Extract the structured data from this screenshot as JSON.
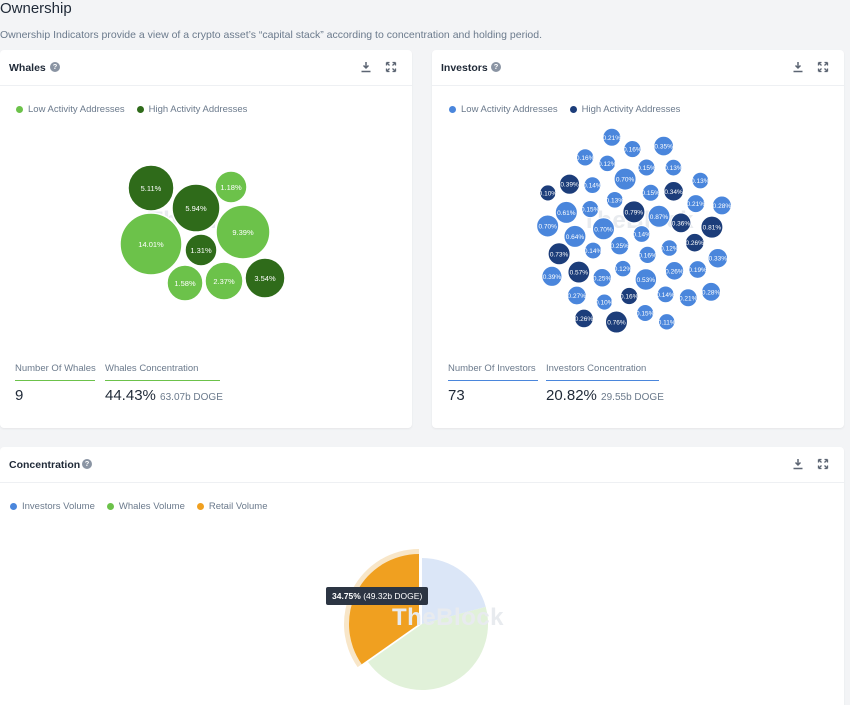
{
  "page": {
    "title": "Ownership",
    "subtitle": "Ownership Indicators provide a view of a crypto asset’s “capital stack” according to concentration and holding period."
  },
  "icons": {
    "help": "help-circle-icon",
    "download": "download-icon",
    "expand": "expand-icon"
  },
  "watermark": "TheBlock",
  "whales": {
    "title": "Whales",
    "legend": [
      {
        "label": "Low Activity Addresses",
        "color": "#6cc24a"
      },
      {
        "label": "High Activity Addresses",
        "color": "#2f6b1a"
      }
    ],
    "bubbles": [
      {
        "label": "5.11%",
        "value": 5.11,
        "activity": "high"
      },
      {
        "label": "1.18%",
        "value": 1.18,
        "activity": "low"
      },
      {
        "label": "5.94%",
        "value": 5.94,
        "activity": "high"
      },
      {
        "label": "14.01%",
        "value": 14.01,
        "activity": "low"
      },
      {
        "label": "9.39%",
        "value": 9.39,
        "activity": "low"
      },
      {
        "label": "1.31%",
        "value": 1.31,
        "activity": "high"
      },
      {
        "label": "1.58%",
        "value": 1.58,
        "activity": "low"
      },
      {
        "label": "2.37%",
        "value": 2.37,
        "activity": "low"
      },
      {
        "label": "3.54%",
        "value": 3.54,
        "activity": "high"
      }
    ],
    "stats": {
      "count_label": "Number Of Whales",
      "count_value": "9",
      "conc_label": "Whales Concentration",
      "conc_value": "44.43%",
      "conc_sub": "63.07b DOGE"
    }
  },
  "investors": {
    "title": "Investors",
    "legend": [
      {
        "label": "Low Activity Addresses",
        "color": "#4a86dc"
      },
      {
        "label": "High Activity Addresses",
        "color": "#1c3d7a"
      }
    ],
    "bubbles": [
      {
        "label": "0.14%",
        "value": 0.14,
        "activity": "low"
      },
      {
        "label": "0.25%",
        "value": 0.25,
        "activity": "low"
      },
      {
        "label": "0.79%",
        "value": 0.79,
        "activity": "high"
      },
      {
        "label": "0.16%",
        "value": 0.16,
        "activity": "low"
      },
      {
        "label": "0.70%",
        "value": 0.7,
        "activity": "low"
      },
      {
        "label": "0.87%",
        "value": 0.87,
        "activity": "low"
      },
      {
        "label": "0.12%",
        "value": 0.12,
        "activity": "low"
      },
      {
        "label": "0.13%",
        "value": 0.13,
        "activity": "low"
      },
      {
        "label": "0.12%",
        "value": 0.12,
        "activity": "low"
      },
      {
        "label": "0.14%",
        "value": 0.14,
        "activity": "low"
      },
      {
        "label": "0.15%",
        "value": 0.15,
        "activity": "low"
      },
      {
        "label": "0.53%",
        "value": 0.53,
        "activity": "low"
      },
      {
        "label": "0.15%",
        "value": 0.15,
        "activity": "low"
      },
      {
        "label": "0.36%",
        "value": 0.36,
        "activity": "high"
      },
      {
        "label": "0.25%",
        "value": 0.25,
        "activity": "low"
      },
      {
        "label": "0.70%",
        "value": 0.7,
        "activity": "low"
      },
      {
        "label": "0.26%",
        "value": 0.26,
        "activity": "low"
      },
      {
        "label": "0.64%",
        "value": 0.64,
        "activity": "low"
      },
      {
        "label": "0.34%",
        "value": 0.34,
        "activity": "high"
      },
      {
        "label": "0.16%",
        "value": 0.16,
        "activity": "high"
      },
      {
        "label": "0.14%",
        "value": 0.14,
        "activity": "low"
      },
      {
        "label": "0.26%",
        "value": 0.26,
        "activity": "high"
      },
      {
        "label": "0.57%",
        "value": 0.57,
        "activity": "high"
      },
      {
        "label": "0.15%",
        "value": 0.15,
        "activity": "low"
      },
      {
        "label": "0.14%",
        "value": 0.14,
        "activity": "low"
      },
      {
        "label": "0.61%",
        "value": 0.61,
        "activity": "low"
      },
      {
        "label": "0.21%",
        "value": 0.21,
        "activity": "low"
      },
      {
        "label": "0.10%",
        "value": 0.1,
        "activity": "low"
      },
      {
        "label": "0.12%",
        "value": 0.12,
        "activity": "low"
      },
      {
        "label": "0.19%",
        "value": 0.19,
        "activity": "low"
      },
      {
        "label": "0.73%",
        "value": 0.73,
        "activity": "high"
      },
      {
        "label": "0.13%",
        "value": 0.13,
        "activity": "low"
      },
      {
        "label": "0.15%",
        "value": 0.15,
        "activity": "low"
      },
      {
        "label": "0.39%",
        "value": 0.39,
        "activity": "high"
      },
      {
        "label": "0.81%",
        "value": 0.81,
        "activity": "high"
      },
      {
        "label": "0.27%",
        "value": 0.27,
        "activity": "low"
      },
      {
        "label": "0.16%",
        "value": 0.16,
        "activity": "low"
      },
      {
        "label": "0.21%",
        "value": 0.21,
        "activity": "low"
      },
      {
        "label": "0.70%",
        "value": 0.7,
        "activity": "low"
      },
      {
        "label": "0.13%",
        "value": 0.13,
        "activity": "low"
      },
      {
        "label": "0.76%",
        "value": 0.76,
        "activity": "high"
      },
      {
        "label": "0.16%",
        "value": 0.16,
        "activity": "low"
      },
      {
        "label": "0.33%",
        "value": 0.33,
        "activity": "low"
      },
      {
        "label": "0.39%",
        "value": 0.39,
        "activity": "low"
      },
      {
        "label": "0.35%",
        "value": 0.35,
        "activity": "low"
      },
      {
        "label": "0.11%",
        "value": 0.11,
        "activity": "low"
      },
      {
        "label": "0.10%",
        "value": 0.1,
        "activity": "high"
      },
      {
        "label": "0.28%",
        "value": 0.28,
        "activity": "low"
      },
      {
        "label": "0.26%",
        "value": 0.26,
        "activity": "high"
      },
      {
        "label": "0.21%",
        "value": 0.21,
        "activity": "low"
      },
      {
        "label": "0.28%",
        "value": 0.28,
        "activity": "low"
      }
    ],
    "stats": {
      "count_label": "Number Of Investors",
      "count_value": "73",
      "conc_label": "Investors Concentration",
      "conc_value": "20.82%",
      "conc_sub": "29.55b DOGE"
    }
  },
  "concentration": {
    "title": "Concentration",
    "legend": [
      {
        "label": "Investors Volume",
        "color": "#4a86dc"
      },
      {
        "label": "Whales Volume",
        "color": "#6cc24a"
      },
      {
        "label": "Retail Volume",
        "color": "#f0a020"
      }
    ],
    "tooltip": {
      "value": "34.75%",
      "detail": "(49.32b DOGE)"
    }
  },
  "chart_data": {
    "type": "pie",
    "title": "Concentration",
    "labels": [
      "Investors Volume",
      "Whales Volume",
      "Retail Volume"
    ],
    "values": [
      20.82,
      44.43,
      34.75
    ],
    "colors": [
      "#dbe6f7",
      "#e1f1d9",
      "#f0a020"
    ],
    "highlighted": "Retail Volume"
  }
}
